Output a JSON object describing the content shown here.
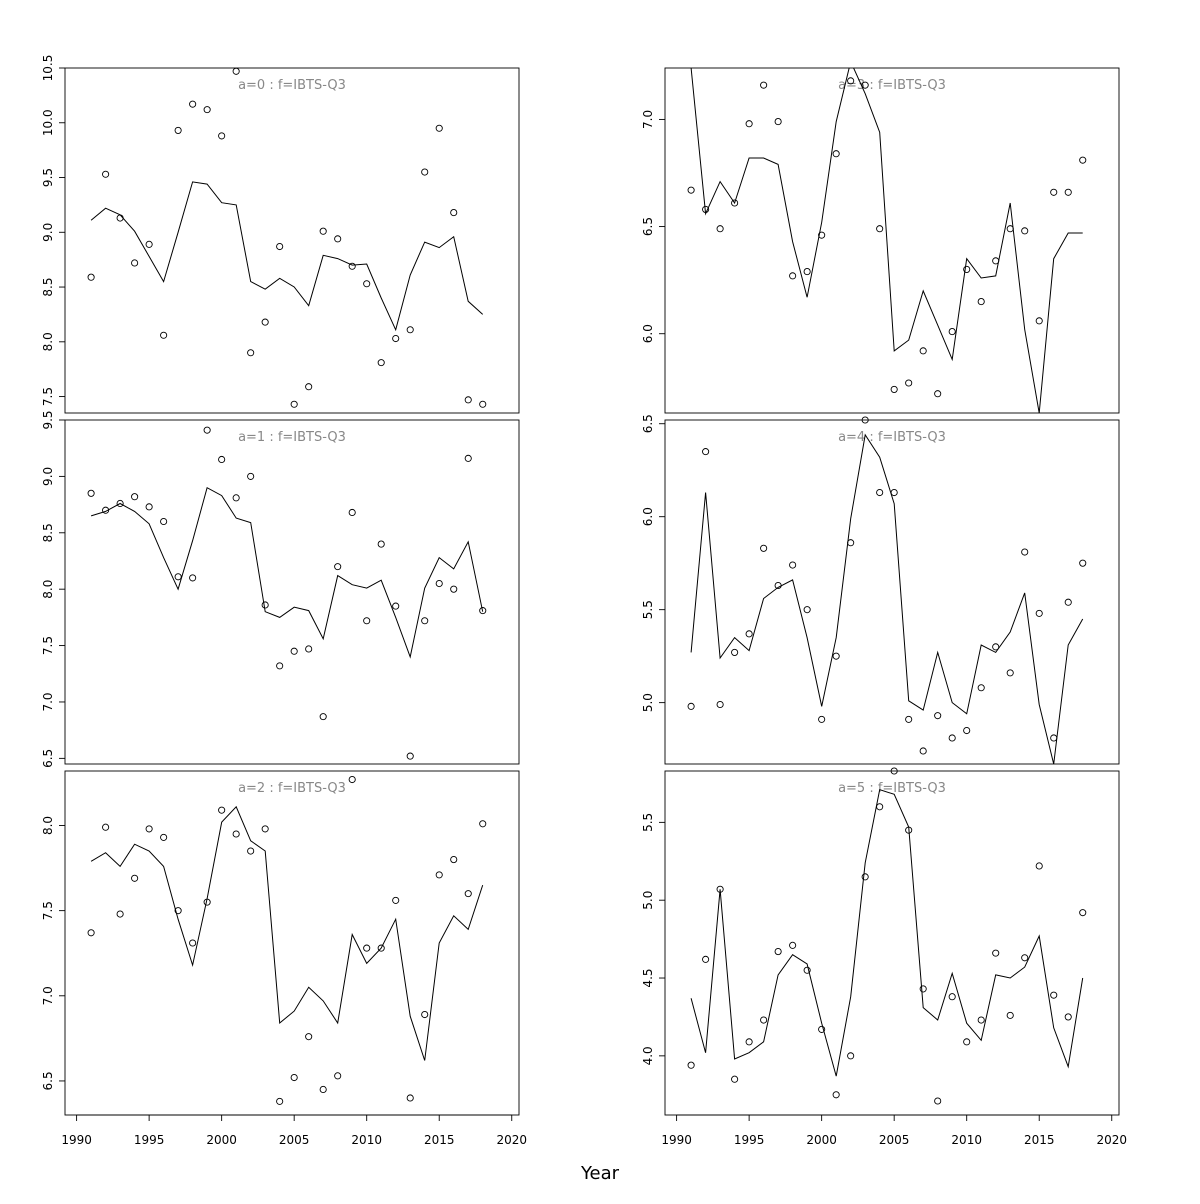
{
  "chart_data": [
    {
      "type": "line+scatter",
      "title": "a=0 : f=IBTS-Q3",
      "ylim": [
        7.35,
        10.5
      ],
      "yticks": [
        "7.5",
        "8.0",
        "8.5",
        "9.0",
        "9.5",
        "10.0",
        "10.5"
      ],
      "x": [
        1991,
        1992,
        1993,
        1994,
        1995,
        1996,
        1997,
        1998,
        1999,
        2000,
        2001,
        2002,
        2003,
        2004,
        2005,
        2006,
        2007,
        2008,
        2009,
        2010,
        2011,
        2012,
        2013,
        2014,
        2015,
        2016,
        2017,
        2018
      ],
      "fitted": [
        9.11,
        9.22,
        9.16,
        9.01,
        8.78,
        8.55,
        9.0,
        9.46,
        9.44,
        9.27,
        9.25,
        8.55,
        8.48,
        8.58,
        8.5,
        8.33,
        8.79,
        8.76,
        8.7,
        8.71,
        8.4,
        8.11,
        8.61,
        8.91,
        8.86,
        8.96,
        8.37,
        8.25
      ],
      "observed": [
        8.59,
        9.53,
        9.13,
        8.72,
        8.89,
        8.06,
        9.93,
        10.17,
        10.12,
        9.88,
        10.47,
        7.9,
        8.18,
        8.87,
        7.43,
        7.59,
        9.01,
        8.94,
        8.69,
        8.53,
        7.81,
        8.03,
        8.11,
        9.55,
        9.95,
        9.18,
        7.47,
        7.43
      ]
    },
    {
      "type": "line+scatter",
      "title": "a=1 : f=IBTS-Q3",
      "ylim": [
        6.45,
        9.5
      ],
      "yticks": [
        "6.5",
        "7.0",
        "7.5",
        "8.0",
        "8.5",
        "9.0",
        "9.5"
      ],
      "x": [
        1991,
        1992,
        1993,
        1994,
        1995,
        1996,
        1997,
        1998,
        1999,
        2000,
        2001,
        2002,
        2003,
        2004,
        2005,
        2006,
        2007,
        2008,
        2009,
        2010,
        2011,
        2012,
        2013,
        2014,
        2015,
        2016,
        2017,
        2018
      ],
      "fitted": [
        8.65,
        8.69,
        8.76,
        8.69,
        8.58,
        8.28,
        8.0,
        8.43,
        8.9,
        8.83,
        8.63,
        8.59,
        7.8,
        7.75,
        7.84,
        7.81,
        7.56,
        8.12,
        8.04,
        8.01,
        8.08,
        7.75,
        7.4,
        8.01,
        8.28,
        8.18,
        8.42,
        7.8
      ],
      "observed": [
        8.85,
        8.7,
        8.76,
        8.82,
        8.73,
        8.6,
        8.11,
        8.1,
        9.41,
        9.15,
        8.81,
        9.0,
        7.86,
        7.32,
        7.45,
        7.47,
        6.87,
        8.2,
        8.68,
        7.72,
        8.4,
        7.85,
        6.52,
        7.72,
        8.05,
        8.0,
        9.16,
        7.81
      ]
    },
    {
      "type": "line+scatter",
      "title": "a=2 : f=IBTS-Q3",
      "ylim": [
        6.3,
        8.32
      ],
      "yticks": [
        "6.5",
        "7.0",
        "7.5",
        "8.0"
      ],
      "x": [
        1991,
        1992,
        1993,
        1994,
        1995,
        1996,
        1997,
        1998,
        1999,
        2000,
        2001,
        2002,
        2003,
        2004,
        2005,
        2006,
        2007,
        2008,
        2009,
        2010,
        2011,
        2012,
        2013,
        2014,
        2015,
        2016,
        2017,
        2018
      ],
      "fitted": [
        7.79,
        7.84,
        7.76,
        7.89,
        7.85,
        7.76,
        7.45,
        7.18,
        7.57,
        8.02,
        8.11,
        7.91,
        7.85,
        6.84,
        6.91,
        7.05,
        6.97,
        6.84,
        7.36,
        7.19,
        7.28,
        7.45,
        6.88,
        6.62,
        7.31,
        7.47,
        7.39,
        7.65
      ],
      "observed": [
        7.37,
        7.99,
        7.48,
        7.69,
        7.98,
        7.93,
        7.5,
        7.31,
        7.55,
        8.09,
        7.95,
        7.85,
        7.98,
        6.38,
        6.52,
        6.76,
        6.45,
        6.53,
        8.27,
        7.28,
        7.28,
        7.56,
        6.4,
        6.89,
        7.71,
        7.8,
        7.6,
        8.01
      ]
    },
    {
      "type": "line+scatter",
      "title": "a=3 : f=IBTS-Q3",
      "ylim": [
        5.63,
        7.24
      ],
      "yticks": [
        "6.0",
        "6.5",
        "7.0"
      ],
      "x": [
        1991,
        1992,
        1993,
        1994,
        1995,
        1996,
        1997,
        1998,
        1999,
        2000,
        2001,
        2002,
        2003,
        2004,
        2005,
        2006,
        2007,
        2008,
        2009,
        2010,
        2011,
        2012,
        2013,
        2014,
        2015,
        2016,
        2017,
        2018
      ],
      "fitted": [
        7.24,
        6.56,
        6.71,
        6.61,
        6.82,
        6.82,
        6.79,
        6.43,
        6.17,
        6.52,
        6.99,
        7.27,
        7.12,
        6.94,
        5.92,
        5.97,
        6.2,
        6.04,
        5.88,
        6.35,
        6.26,
        6.27,
        6.61,
        6.02,
        5.63,
        6.35,
        6.47,
        6.47
      ],
      "observed": [
        6.67,
        6.58,
        6.49,
        6.61,
        6.98,
        7.16,
        6.99,
        6.27,
        6.29,
        6.46,
        6.84,
        7.18,
        7.16,
        6.49,
        5.74,
        5.77,
        5.92,
        5.72,
        6.01,
        6.3,
        6.15,
        6.34,
        6.49,
        6.48,
        6.06,
        6.66,
        6.66,
        6.81
      ]
    },
    {
      "type": "line+scatter",
      "title": "a=4 : f=IBTS-Q3",
      "ylim": [
        4.67,
        6.52
      ],
      "yticks": [
        "5.0",
        "5.5",
        "6.0",
        "6.5"
      ],
      "x": [
        1991,
        1992,
        1993,
        1994,
        1995,
        1996,
        1997,
        1998,
        1999,
        2000,
        2001,
        2002,
        2003,
        2004,
        2005,
        2006,
        2007,
        2008,
        2009,
        2010,
        2011,
        2012,
        2013,
        2014,
        2015,
        2016,
        2017,
        2018
      ],
      "fitted": [
        5.27,
        6.13,
        5.24,
        5.35,
        5.28,
        5.56,
        5.62,
        5.66,
        5.35,
        4.98,
        5.35,
        5.99,
        6.44,
        6.32,
        6.07,
        5.01,
        4.96,
        5.27,
        5.0,
        4.94,
        5.31,
        5.27,
        5.38,
        5.59,
        4.99,
        4.67,
        5.31,
        5.45
      ],
      "observed": [
        4.98,
        6.35,
        4.99,
        5.27,
        5.37,
        5.83,
        5.63,
        5.74,
        5.5,
        4.91,
        5.25,
        5.86,
        6.52,
        6.13,
        6.13,
        4.91,
        4.74,
        4.93,
        4.81,
        4.85,
        5.08,
        5.3,
        5.16,
        5.81,
        5.48,
        4.81,
        5.54,
        5.75
      ]
    },
    {
      "type": "line+scatter",
      "title": "a=5 : f=IBTS-Q3",
      "ylim": [
        3.62,
        5.83
      ],
      "yticks": [
        "4.0",
        "4.5",
        "5.0",
        "5.5"
      ],
      "x": [
        1991,
        1992,
        1993,
        1994,
        1995,
        1996,
        1997,
        1998,
        1999,
        2000,
        2001,
        2002,
        2003,
        2004,
        2005,
        2006,
        2007,
        2008,
        2009,
        2010,
        2011,
        2012,
        2013,
        2014,
        2015,
        2016,
        2017,
        2018
      ],
      "fitted": [
        4.37,
        4.02,
        5.07,
        3.98,
        4.02,
        4.09,
        4.52,
        4.65,
        4.59,
        4.21,
        3.87,
        4.38,
        5.24,
        5.71,
        5.68,
        5.47,
        4.31,
        4.23,
        4.53,
        4.21,
        4.1,
        4.52,
        4.5,
        4.57,
        4.77,
        4.18,
        3.93,
        4.5
      ],
      "observed": [
        3.94,
        4.62,
        5.07,
        3.85,
        4.09,
        4.23,
        4.67,
        4.71,
        4.55,
        4.17,
        3.75,
        4.0,
        5.15,
        5.6,
        5.83,
        5.45,
        4.43,
        3.71,
        4.38,
        4.09,
        4.23,
        4.66,
        4.26,
        4.63,
        5.22,
        4.39,
        4.25,
        4.92
      ]
    }
  ],
  "xaxis": {
    "label": "Year",
    "xlim": [
      1989.2,
      2020.5
    ],
    "ticks": [
      "1990",
      "1995",
      "2000",
      "2005",
      "2010",
      "2015",
      "2020"
    ],
    "tick_values": [
      1990,
      1995,
      2000,
      2005,
      2010,
      2015,
      2020
    ]
  }
}
